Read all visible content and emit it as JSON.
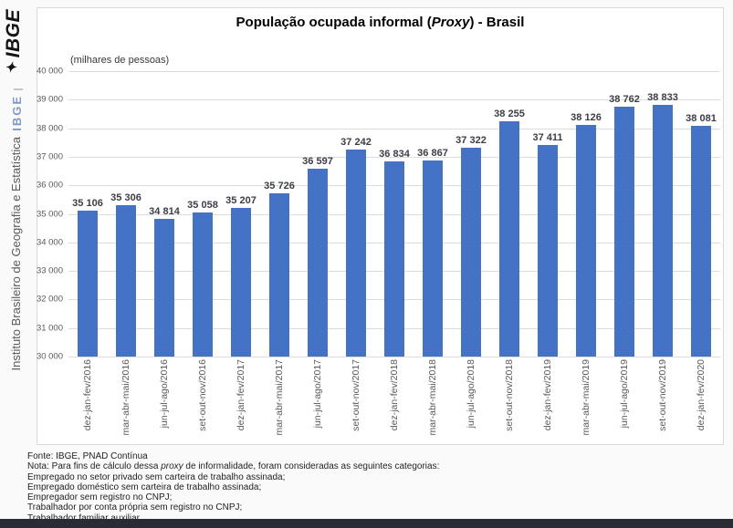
{
  "sidebar": {
    "logo_icon": "✦",
    "logo_text": "IBGE",
    "acronym": "IBGE",
    "institute_name": "Instituto Brasileiro de Geografia e Estatística"
  },
  "chart_data": {
    "type": "bar",
    "title": "População ocupada informal (Proxy) - Brasil",
    "title_prefix": "População ocupada informal (",
    "title_italic": "Proxy",
    "title_suffix": ") - Brasil",
    "unit_label": "(milhares de pessoas)",
    "xlabel": "",
    "ylabel": "(milhares de pessoas)",
    "ylim": [
      30000,
      40000
    ],
    "ytick_step": 1000,
    "ytick_labels": [
      "40 000",
      "39 000",
      "38 000",
      "37 000",
      "36 000",
      "35 000",
      "34 000",
      "33 000",
      "32 000",
      "31 000",
      "30 000"
    ],
    "grid": true,
    "legend_position": "none",
    "bar_color": "#4472c4",
    "categories": [
      "dez-jan-fev/2016",
      "mar-abr-mai/2016",
      "jun-jul-ago/2016",
      "set-out-nov/2016",
      "dez-jan-fev/2017",
      "mar-abr-mai/2017",
      "jun-jul-ago/2017",
      "set-out-nov/2017",
      "dez-jan-fev/2018",
      "mar-abr-mai/2018",
      "jun-jul-ago/2018",
      "set-out-nov/2018",
      "dez-jan-fev/2019",
      "mar-abr-mai/2019",
      "jun-jul-ago/2019",
      "set-out-nov/2019",
      "dez-jan-fev/2020"
    ],
    "values": [
      35106,
      35306,
      34814,
      35058,
      35207,
      35726,
      36597,
      37242,
      36834,
      36867,
      37322,
      38255,
      37411,
      38126,
      38762,
      38833,
      38081
    ],
    "value_labels": [
      "35 106",
      "35 306",
      "34 814",
      "35 058",
      "35 207",
      "35 726",
      "36 597",
      "37 242",
      "36 834",
      "36 867",
      "37 322",
      "38 255",
      "37 411",
      "38 126",
      "38 762",
      "38 833",
      "38 081"
    ]
  },
  "footer": {
    "fonte": "Fonte: IBGE, PNAD Contínua",
    "nota_prefix": "Nota: Para fins de cálculo dessa ",
    "nota_italic": "proxy",
    "nota_suffix": " de informalidade, foram consideradas as seguintes categorias:",
    "categories": [
      "Empregado no setor privado sem carteira de trabalho assinada;",
      "Empregado doméstico sem carteira de trabalho assinada;",
      "Empregador sem registro no CNPJ;",
      "Trabalhador por conta própria sem registro no CNPJ;",
      "Trabalhador familiar auxiliar."
    ]
  },
  "colors": {
    "bar": "#4472c4",
    "gridline": "#dcdcdc",
    "axis_text": "#595959",
    "sidebar_blue": "#7e99c7",
    "bottom_bar": "#282c35"
  }
}
